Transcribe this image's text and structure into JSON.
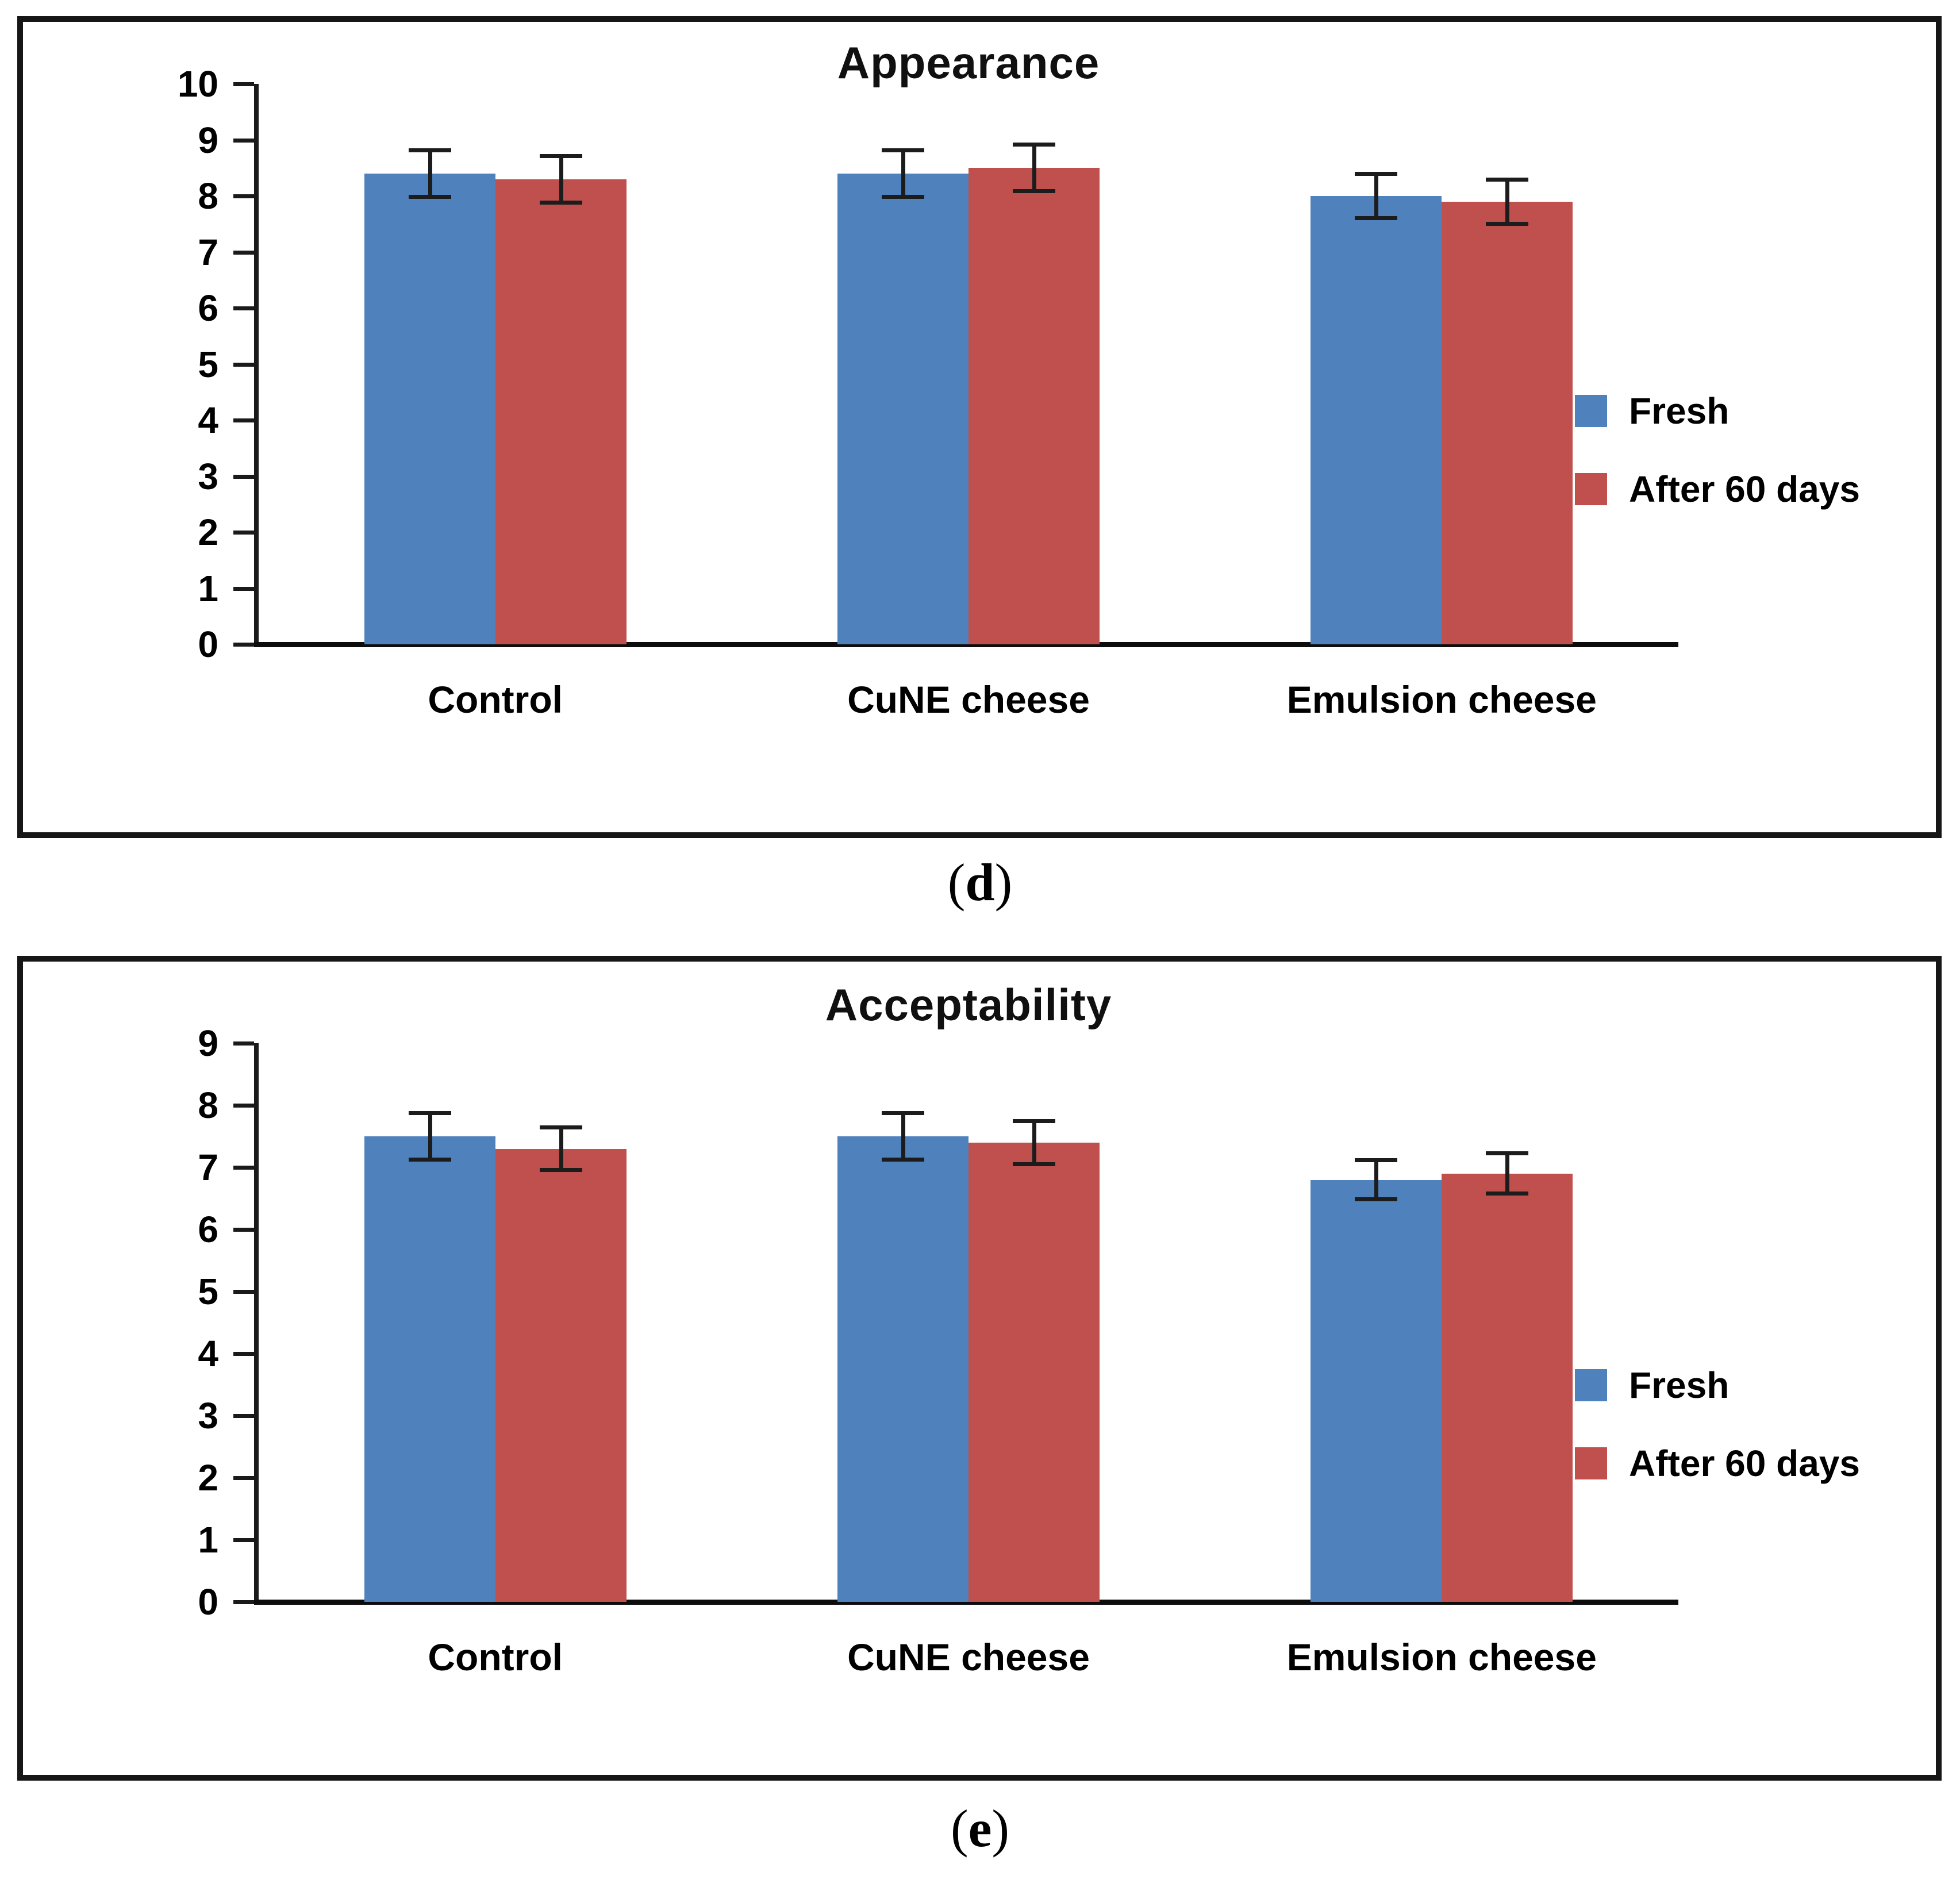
{
  "figure": {
    "captions": [
      {
        "open": "(",
        "letter": "d",
        "close": ")"
      },
      {
        "open": "(",
        "letter": "e",
        "close": ")"
      }
    ]
  },
  "legend": {
    "fresh_label": "Fresh",
    "after_label": "After 60 days"
  },
  "colors": {
    "fresh_blue": "#4F81BD",
    "after_red": "#C0504D",
    "error_bar": "#1c1c1c",
    "axis": "#1a1a1a"
  },
  "chart_data": [
    {
      "type": "bar",
      "title": "Appearance",
      "categories": [
        "Control",
        "CuNE cheese",
        "Emulsion cheese"
      ],
      "series": [
        {
          "name": "Fresh",
          "color": "#4F81BD",
          "values": [
            8.4,
            8.4,
            8.0
          ],
          "errors": [
            0.42,
            0.42,
            0.4
          ]
        },
        {
          "name": "After 60 days",
          "color": "#C0504D",
          "values": [
            8.3,
            8.5,
            7.9
          ],
          "errors": [
            0.42,
            0.42,
            0.4
          ]
        }
      ],
      "xlabel": "",
      "ylabel": "",
      "ylim": [
        0,
        10
      ],
      "yticks": [
        10,
        9,
        8,
        7,
        6,
        5,
        4,
        3,
        2,
        1,
        0
      ],
      "grid": false,
      "legend_position": "right",
      "error_bars": true
    },
    {
      "type": "bar",
      "title": "Acceptability",
      "categories": [
        "Control",
        "CuNE cheese",
        "Emulsion cheese"
      ],
      "series": [
        {
          "name": "Fresh",
          "color": "#4F81BD",
          "values": [
            7.5,
            7.5,
            6.8
          ],
          "errors": [
            0.38,
            0.38,
            0.32
          ]
        },
        {
          "name": "After 60 days",
          "color": "#C0504D",
          "values": [
            7.3,
            7.4,
            6.9
          ],
          "errors": [
            0.35,
            0.35,
            0.33
          ]
        }
      ],
      "xlabel": "",
      "ylabel": "",
      "ylim": [
        0,
        9
      ],
      "yticks": [
        9,
        8,
        7,
        6,
        5,
        4,
        3,
        2,
        1,
        0
      ],
      "grid": false,
      "legend_position": "right",
      "error_bars": true
    }
  ]
}
